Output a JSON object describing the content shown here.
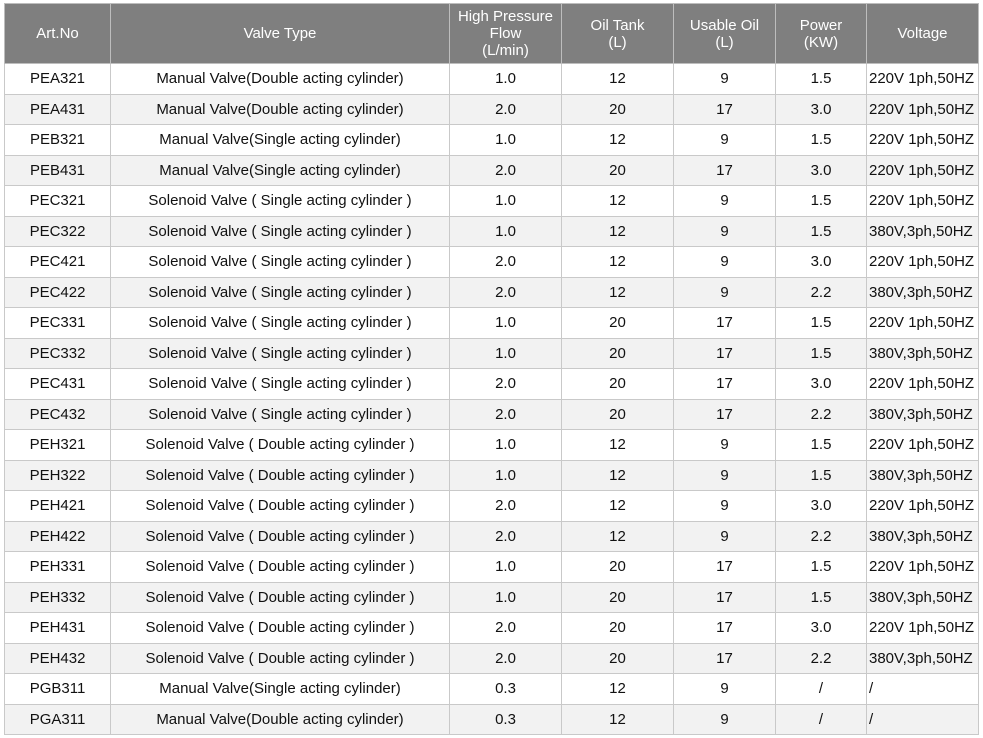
{
  "table": {
    "headers": [
      [
        "Art.No"
      ],
      [
        "Valve Type"
      ],
      [
        "High Pressure",
        "Flow",
        "(L/min)"
      ],
      [
        "Oil Tank",
        "(L)"
      ],
      [
        "Usable Oil",
        "(L)"
      ],
      [
        "Power",
        "(KW)"
      ],
      [
        "Voltage"
      ]
    ],
    "rows": [
      [
        "PEA321",
        "Manual Valve(Double acting cylinder)",
        "1.0",
        "12",
        "9",
        "1.5",
        "220V 1ph,50HZ"
      ],
      [
        "PEA431",
        "Manual Valve(Double acting cylinder)",
        "2.0",
        "20",
        "17",
        "3.0",
        "220V 1ph,50HZ"
      ],
      [
        "PEB321",
        "Manual Valve(Single acting cylinder)",
        "1.0",
        "12",
        "9",
        "1.5",
        "220V 1ph,50HZ"
      ],
      [
        "PEB431",
        "Manual Valve(Single acting cylinder)",
        "2.0",
        "20",
        "17",
        "3.0",
        "220V 1ph,50HZ"
      ],
      [
        "PEC321",
        "Solenoid Valve ( Single acting cylinder )",
        "1.0",
        "12",
        "9",
        "1.5",
        "220V 1ph,50HZ"
      ],
      [
        "PEC322",
        "Solenoid Valve ( Single acting cylinder )",
        "1.0",
        "12",
        "9",
        "1.5",
        "380V,3ph,50HZ"
      ],
      [
        "PEC421",
        "Solenoid Valve ( Single acting cylinder )",
        "2.0",
        "12",
        "9",
        "3.0",
        "220V 1ph,50HZ"
      ],
      [
        "PEC422",
        "Solenoid Valve ( Single acting cylinder )",
        "2.0",
        "12",
        "9",
        "2.2",
        "380V,3ph,50HZ"
      ],
      [
        "PEC331",
        "Solenoid Valve ( Single acting cylinder )",
        "1.0",
        "20",
        "17",
        "1.5",
        "220V 1ph,50HZ"
      ],
      [
        "PEC332",
        "Solenoid Valve ( Single acting cylinder )",
        "1.0",
        "20",
        "17",
        "1.5",
        "380V,3ph,50HZ"
      ],
      [
        "PEC431",
        "Solenoid Valve ( Single acting cylinder )",
        "2.0",
        "20",
        "17",
        "3.0",
        "220V 1ph,50HZ"
      ],
      [
        "PEC432",
        "Solenoid Valve ( Single acting cylinder )",
        "2.0",
        "20",
        "17",
        "2.2",
        "380V,3ph,50HZ"
      ],
      [
        "PEH321",
        "Solenoid Valve ( Double acting cylinder )",
        "1.0",
        "12",
        "9",
        "1.5",
        "220V 1ph,50HZ"
      ],
      [
        "PEH322",
        "Solenoid Valve ( Double acting cylinder )",
        "1.0",
        "12",
        "9",
        "1.5",
        "380V,3ph,50HZ"
      ],
      [
        "PEH421",
        "Solenoid Valve ( Double acting cylinder )",
        "2.0",
        "12",
        "9",
        "3.0",
        "220V 1ph,50HZ"
      ],
      [
        "PEH422",
        "Solenoid Valve ( Double acting cylinder )",
        "2.0",
        "12",
        "9",
        "2.2",
        "380V,3ph,50HZ"
      ],
      [
        "PEH331",
        "Solenoid Valve ( Double acting cylinder )",
        "1.0",
        "20",
        "17",
        "1.5",
        "220V 1ph,50HZ"
      ],
      [
        "PEH332",
        "Solenoid Valve ( Double acting cylinder )",
        "1.0",
        "20",
        "17",
        "1.5",
        "380V,3ph,50HZ"
      ],
      [
        "PEH431",
        "Solenoid Valve ( Double acting cylinder )",
        "2.0",
        "20",
        "17",
        "3.0",
        "220V 1ph,50HZ"
      ],
      [
        "PEH432",
        "Solenoid Valve ( Double acting cylinder )",
        "2.0",
        "20",
        "17",
        "2.2",
        "380V,3ph,50HZ"
      ],
      [
        "PGB311",
        "Manual Valve(Single acting cylinder)",
        "0.3",
        "12",
        "9",
        "/",
        "/"
      ],
      [
        "PGA311",
        "Manual Valve(Double acting cylinder)",
        "0.3",
        "12",
        "9",
        "/",
        "/"
      ]
    ]
  }
}
